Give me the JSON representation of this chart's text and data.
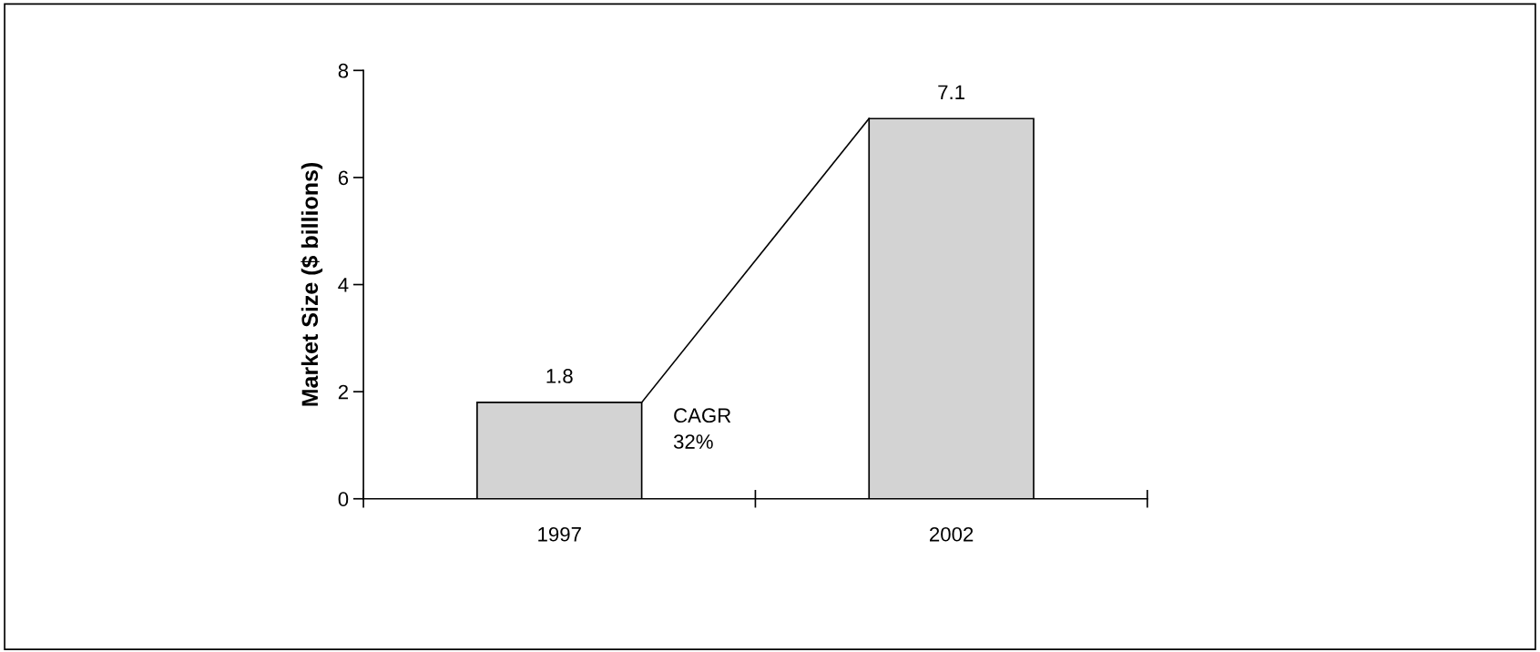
{
  "chart_data": {
    "type": "bar",
    "categories": [
      "1997",
      "2002"
    ],
    "values": [
      1.8,
      7.1
    ],
    "color": "#d3d3d3",
    "ylabel": "Market Size ($ billions)",
    "ylim": [
      0,
      8
    ],
    "yticks": [
      0,
      2,
      4,
      6,
      8
    ],
    "data_labels": true,
    "grid": false,
    "annotations": [
      "CAGR\n32%"
    ]
  }
}
